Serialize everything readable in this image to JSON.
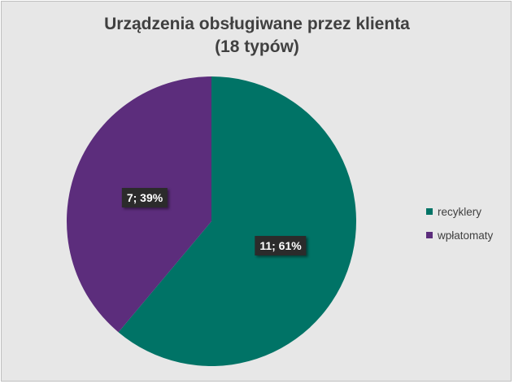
{
  "chart_data": {
    "type": "pie",
    "title": "Urządzenia obsługiwane przez klienta",
    "subtitle": "(18 typów)",
    "categories": [
      "recyklery",
      "wpłatomaty"
    ],
    "values": [
      11,
      7
    ],
    "percentages": [
      61,
      39
    ],
    "data_labels": [
      "11; 61%",
      "7; 39%"
    ],
    "colors": [
      "#007366",
      "#5c2d7c"
    ],
    "background": "#e7e7e7",
    "legend_position": "right"
  }
}
